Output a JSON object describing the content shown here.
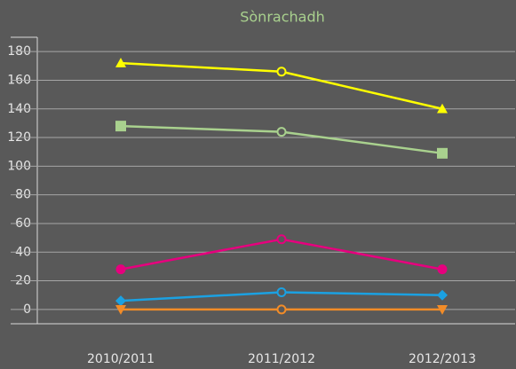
{
  "chart_data": {
    "type": "line",
    "title": "Sònrachadh",
    "categories": [
      "2010/2011",
      "2011/2012",
      "2012/2013"
    ],
    "series": [
      {
        "color": "#ffff00",
        "marker": "triangle",
        "values": [
          172,
          166,
          140
        ]
      },
      {
        "color": "#a9d18e",
        "marker": "square",
        "values": [
          128,
          124,
          109
        ]
      },
      {
        "color": "#e6007e",
        "marker": "circle",
        "values": [
          28,
          49,
          28
        ]
      },
      {
        "color": "#1ba1e2",
        "marker": "diamond",
        "values": [
          6,
          12,
          10
        ]
      },
      {
        "color": "#f28c28",
        "marker": "triangle-down",
        "values": [
          0,
          0,
          0
        ]
      }
    ],
    "ylim": [
      -10,
      190
    ],
    "yticks": [
      0,
      20,
      40,
      60,
      80,
      100,
      120,
      140,
      160,
      180
    ],
    "grid": true
  }
}
